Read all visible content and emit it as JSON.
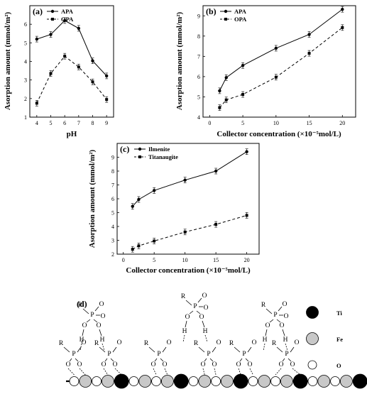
{
  "chart_data": [
    {
      "panel": "(a)",
      "type": "line",
      "categories": [
        "4",
        "5",
        "6",
        "7",
        "8",
        "9"
      ],
      "x": [
        4,
        5,
        6,
        7,
        8,
        9
      ],
      "xlabel": "pH",
      "ylabel": "Asorption amount (mmol/m²)",
      "xlim": [
        3.5,
        9.5
      ],
      "ylim": [
        1,
        7
      ],
      "yticks": [
        1,
        2,
        3,
        4,
        5,
        6
      ],
      "legend_position": "top-left",
      "series": [
        {
          "name": "APA",
          "values": [
            5.2,
            5.45,
            6.2,
            5.78,
            4.03,
            3.22
          ],
          "style": "solid",
          "marker": "circle"
        },
        {
          "name": "OPA",
          "values": [
            1.75,
            3.35,
            4.28,
            3.7,
            2.9,
            1.95
          ],
          "style": "dashed",
          "marker": "square"
        }
      ]
    },
    {
      "panel": "(b)",
      "type": "line",
      "x": [
        1.5,
        2.5,
        5,
        10,
        15,
        20
      ],
      "xlabel": "Collector concentration (×10⁻⁵mol/L)",
      "ylabel": "Asorption amount (mmol/m²)",
      "xlim": [
        -1,
        22
      ],
      "ylim": [
        4,
        9.5
      ],
      "xticks": [
        0,
        5,
        10,
        15,
        20
      ],
      "yticks": [
        4,
        5,
        6,
        7,
        8,
        9
      ],
      "legend_position": "top-left",
      "series": [
        {
          "name": "APA",
          "values": [
            5.3,
            5.95,
            6.55,
            7.4,
            8.08,
            9.32
          ],
          "style": "solid",
          "marker": "circle"
        },
        {
          "name": "OPA",
          "values": [
            4.47,
            4.85,
            5.12,
            5.97,
            7.15,
            8.42
          ],
          "style": "dashed",
          "marker": "square"
        }
      ]
    },
    {
      "panel": "(c)",
      "type": "line",
      "x": [
        1.5,
        2.5,
        5,
        10,
        15,
        20
      ],
      "xlabel": "Collector concentration (×10⁻⁵mol/L)",
      "ylabel": "Asorption amount (mmol/m²)",
      "xlim": [
        -1,
        22
      ],
      "ylim": [
        2,
        10
      ],
      "xticks": [
        0,
        5,
        10,
        15,
        20
      ],
      "yticks": [
        2,
        3,
        4,
        5,
        6,
        7,
        8,
        9
      ],
      "legend_position": "top-left",
      "series": [
        {
          "name": "Ilmenite",
          "values": [
            5.45,
            5.95,
            6.6,
            7.35,
            8.0,
            9.4
          ],
          "style": "solid",
          "marker": "circle"
        },
        {
          "name": "Titanaugite",
          "values": [
            2.35,
            2.6,
            2.95,
            3.6,
            4.15,
            4.8
          ],
          "style": "dashed",
          "marker": "square"
        }
      ]
    }
  ],
  "scheme": {
    "label": "(d)",
    "legend": [
      {
        "name": "Ti",
        "color": "#000000"
      },
      {
        "name": "Fe",
        "color": "#c8c8c8"
      },
      {
        "name": "O",
        "color": "#ffffff"
      }
    ],
    "surface_sequence": "OFOFTOFOFTOFOFTOFOFTOFOFTOFO",
    "symbols": {
      "R": "R",
      "P": "P",
      "O": "O",
      "H": "H"
    }
  }
}
